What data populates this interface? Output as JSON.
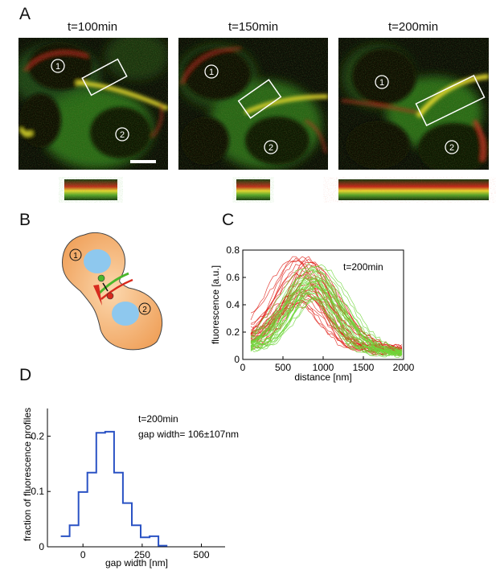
{
  "panels": {
    "a": "A",
    "b": "B",
    "c": "C",
    "d": "D"
  },
  "panel_a": {
    "timepoints": [
      "t=100min",
      "t=150min",
      "t=200min"
    ],
    "cell_labels": [
      "1",
      "2"
    ]
  },
  "panel_b": {
    "cell_labels": [
      "1",
      "2"
    ]
  },
  "chart_data": [
    {
      "type": "line",
      "panel": "C",
      "annotation": "t=200min",
      "xlabel": "distance [nm]",
      "ylabel": "fluorescence [a.u.]",
      "xlim": [
        0,
        2000
      ],
      "ylim": [
        0,
        0.8
      ],
      "xticks": [
        "0",
        "500",
        "1000",
        "1500",
        "2000"
      ],
      "yticks": [
        "0",
        "0.2",
        "0.4",
        "0.6",
        "0.8"
      ],
      "grid": false,
      "colors": {
        "red": "#e0231b",
        "green": "#6ed63a"
      },
      "series_groups": [
        {
          "color": "red",
          "count": 30,
          "peak_x_range": [
            650,
            900
          ],
          "peak_y_range": [
            0.42,
            0.78
          ],
          "baseline": [
            0.08,
            0.18
          ]
        },
        {
          "color": "green",
          "count": 30,
          "peak_x_range": [
            780,
            1000
          ],
          "peak_y_range": [
            0.45,
            0.72
          ],
          "baseline": [
            0.05,
            0.12
          ]
        }
      ]
    },
    {
      "type": "step",
      "panel": "D",
      "annotation_line1": "t=200min",
      "annotation_line2": "gap width= 106±107nm",
      "xlabel": "gap width [nm]",
      "ylabel": "fraction of fluorescence profiles",
      "xlim": [
        -150,
        600
      ],
      "ylim": [
        0,
        0.25
      ],
      "xticks": [
        "0",
        "250",
        "500"
      ],
      "yticks": [
        "0",
        "0.1",
        "0.2"
      ],
      "color": "#2a52c4",
      "bin_width": 37.5,
      "bin_edges_start": -93.75,
      "values": [
        0.019,
        0.039,
        0.099,
        0.134,
        0.206,
        0.208,
        0.134,
        0.079,
        0.039,
        0.017,
        0.019,
        0.002
      ]
    }
  ]
}
